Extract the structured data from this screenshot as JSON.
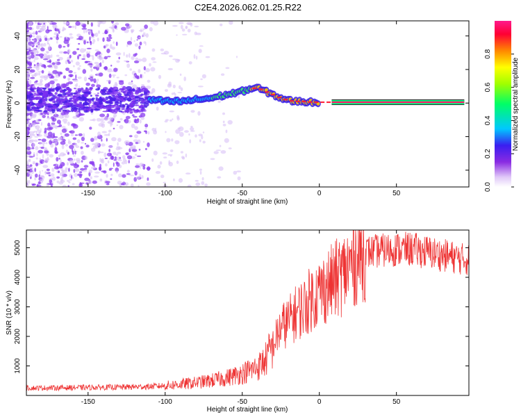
{
  "title": "C2E4.2026.062.01.25.R22",
  "chart_data": [
    {
      "type": "heatmap",
      "name": "spectrogram",
      "xlabel": "Height of straight line (km)",
      "ylabel": "Frequency (Hz)",
      "xlim": [
        -190,
        97
      ],
      "ylim": [
        -50,
        49
      ],
      "xticks": [
        -150,
        -100,
        -50,
        0,
        50
      ],
      "yticks": [
        -40,
        -20,
        0,
        20,
        40
      ],
      "ridge": {
        "x": [
          -110,
          -100,
          -90,
          -80,
          -70,
          -60,
          -50,
          -45,
          -40,
          -35,
          -30,
          -25,
          -20,
          -15,
          -10,
          -5,
          0,
          5,
          10,
          20,
          40,
          60,
          80,
          95
        ],
        "y": [
          2,
          1,
          1,
          2,
          3,
          5,
          7,
          8.5,
          9,
          7,
          5,
          3,
          1.5,
          1,
          1,
          0.5,
          0.5,
          0.5,
          0.5,
          0.5,
          0.5,
          0.5,
          0.5,
          0.5
        ]
      },
      "colorbar": {
        "label": "Normalized spectral amplitude",
        "range": [
          0.0,
          1.0
        ],
        "ticks": [
          "0.0",
          "0.2",
          "0.4",
          "0.6",
          "0.8"
        ]
      }
    },
    {
      "type": "line",
      "name": "snr",
      "xlabel": "Height of straight line (km)",
      "ylabel": "SNR (10 * v/v)",
      "xlim": [
        -190,
        97
      ],
      "ylim": [
        0,
        5600
      ],
      "xticks": [
        -150,
        -100,
        -50,
        0,
        50
      ],
      "yticks": [
        1000,
        2000,
        3000,
        4000,
        5000
      ],
      "color": "#ee3333",
      "series": [
        {
          "name": "SNR",
          "x": [
            -190,
            -170,
            -150,
            -130,
            -110,
            -100,
            -90,
            -80,
            -70,
            -60,
            -50,
            -40,
            -35,
            -30,
            -25,
            -20,
            -15,
            -10,
            -5,
            0,
            5,
            10,
            15,
            20,
            25,
            30,
            40,
            50,
            60,
            70,
            80,
            90,
            95
          ],
          "y": [
            250,
            260,
            270,
            280,
            300,
            330,
            380,
            430,
            500,
            600,
            750,
            950,
            1200,
            1700,
            2300,
            2500,
            2800,
            3000,
            3300,
            3500,
            3700,
            3900,
            4100,
            4400,
            4700,
            4850,
            4900,
            4950,
            4950,
            4850,
            4750,
            4650,
            4600
          ]
        }
      ]
    }
  ]
}
